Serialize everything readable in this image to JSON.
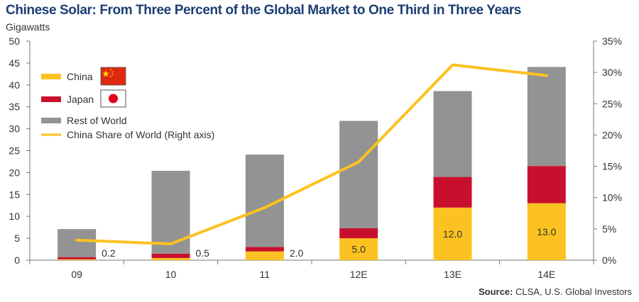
{
  "title": "Chinese Solar: From Three Percent of the Global Market to One Third in Three Years",
  "source_label": "Source:",
  "source_text": " CLSA, U.S. Global Investors",
  "colors": {
    "china": "#fcc221",
    "japan": "#c8102e",
    "rest": "#939393",
    "share_line": "#fcc221",
    "title": "#1c3f73",
    "china_flag": "#de2910",
    "china_flag_stars": "#ffde00",
    "japan_flag_disc": "#e0001a"
  },
  "chart_data": {
    "type": "bar",
    "stacked": true,
    "title": "Chinese Solar: From Three Percent of the Global Market to One Third in Three Years",
    "ylabel": "Gigawatts",
    "ylim": [
      0,
      50
    ],
    "y_ticks": [
      "0",
      "5",
      "10",
      "15",
      "20",
      "25",
      "30",
      "35",
      "40",
      "45",
      "50"
    ],
    "y2lim": [
      0,
      35
    ],
    "y2_ticks": [
      "0%",
      "5%",
      "10%",
      "15%",
      "20%",
      "25%",
      "30%",
      "35%"
    ],
    "categories": [
      "09",
      "10",
      "11",
      "12E",
      "13E",
      "14E"
    ],
    "series": [
      {
        "name": "China",
        "values": [
          0.2,
          0.5,
          2.0,
          5.0,
          12.0,
          13.0
        ],
        "labels": [
          "0.2",
          "0.5",
          "2.0",
          "5.0",
          "12.0",
          "13.0"
        ]
      },
      {
        "name": "Japan",
        "values": [
          0.5,
          1.0,
          1.0,
          2.3,
          7.0,
          8.5
        ]
      },
      {
        "name": "Rest of World",
        "values": [
          6.4,
          18.9,
          21.1,
          24.5,
          19.6,
          22.6
        ]
      }
    ],
    "line_series": {
      "name": "China Share of World (Right axis)",
      "axis": "right",
      "values": [
        3.2,
        2.6,
        8.4,
        15.7,
        31.2,
        29.5
      ]
    },
    "legend": [
      {
        "label": "China",
        "swatch": "bar",
        "color": "#fcc221",
        "flag": "china"
      },
      {
        "label": "Japan",
        "swatch": "bar",
        "color": "#c8102e",
        "flag": "japan"
      },
      {
        "label": "Rest of World",
        "swatch": "bar",
        "color": "#939393"
      },
      {
        "label": "China Share of World (Right axis)",
        "swatch": "line",
        "color": "#fcc221"
      }
    ],
    "legend_position": "top-left",
    "grid": false
  }
}
